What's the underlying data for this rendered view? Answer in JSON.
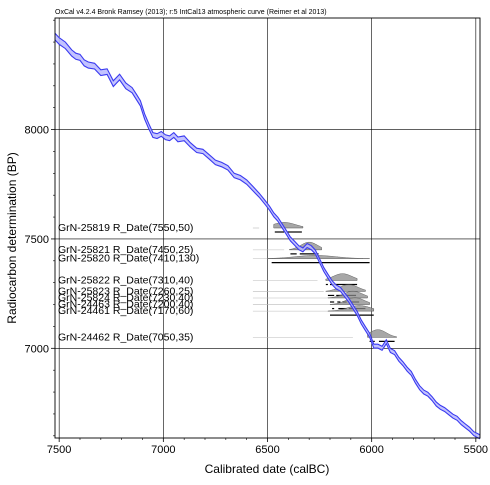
{
  "header": "OxCal v4.2.4 Bronk Ramsey (2013); r:5 IntCal13 atmospheric curve (Reimer et al 2013)",
  "chart_data": {
    "type": "line",
    "title": "",
    "xlabel": "Calibrated date (calBC)",
    "ylabel": "Radiocarbon determination (BP)",
    "xlim": [
      7520,
      5480
    ],
    "ylim": [
      6590,
      8510
    ],
    "x_reversed": true,
    "x_ticks": [
      7500,
      7000,
      6500,
      6000,
      5500
    ],
    "y_ticks": [
      8000,
      7500,
      7000
    ],
    "grid": true,
    "curve_color": "#3a3af0",
    "curve_fill": "#b8b8ff",
    "calibration_curve": {
      "name": "IntCal13",
      "x": [
        7520,
        7500,
        7470,
        7440,
        7420,
        7400,
        7380,
        7360,
        7330,
        7300,
        7270,
        7240,
        7210,
        7180,
        7150,
        7130,
        7110,
        7090,
        7070,
        7050,
        7030,
        7010,
        6990,
        6970,
        6950,
        6930,
        6900,
        6870,
        6840,
        6810,
        6780,
        6750,
        6720,
        6690,
        6660,
        6630,
        6600,
        6570,
        6540,
        6510,
        6490,
        6470,
        6450,
        6430,
        6410,
        6390,
        6370,
        6350,
        6330,
        6310,
        6290,
        6270,
        6250,
        6230,
        6210,
        6190,
        6170,
        6150,
        6130,
        6110,
        6090,
        6070,
        6050,
        6030,
        6010,
        5990,
        5970,
        5950,
        5930,
        5910,
        5890,
        5870,
        5850,
        5830,
        5810,
        5790,
        5770,
        5750,
        5730,
        5710,
        5690,
        5670,
        5650,
        5630,
        5610,
        5590,
        5570,
        5550,
        5530,
        5510,
        5490,
        5480
      ],
      "y": [
        8425,
        8405,
        8385,
        8350,
        8335,
        8330,
        8305,
        8295,
        8290,
        8260,
        8265,
        8210,
        8240,
        8200,
        8180,
        8150,
        8120,
        8060,
        8015,
        7975,
        7970,
        7980,
        7965,
        7960,
        7975,
        7955,
        7960,
        7930,
        7905,
        7900,
        7875,
        7850,
        7840,
        7825,
        7790,
        7780,
        7760,
        7730,
        7700,
        7665,
        7640,
        7610,
        7590,
        7560,
        7530,
        7500,
        7480,
        7460,
        7450,
        7470,
        7460,
        7440,
        7400,
        7360,
        7330,
        7300,
        7280,
        7270,
        7245,
        7220,
        7190,
        7160,
        7120,
        7090,
        7060,
        7010,
        7010,
        7000,
        7030,
        6990,
        6980,
        6950,
        6930,
        6905,
        6885,
        6850,
        6820,
        6800,
        6790,
        6770,
        6745,
        6730,
        6720,
        6705,
        6690,
        6680,
        6660,
        6645,
        6630,
        6610,
        6600,
        6595
      ],
      "sigma": [
        15,
        15,
        15,
        14,
        14,
        14,
        14,
        14,
        13,
        13,
        13,
        13,
        13,
        13,
        12,
        12,
        12,
        12,
        12,
        11,
        11,
        11,
        11,
        11,
        11,
        11,
        11,
        10,
        10,
        10,
        10,
        10,
        10,
        10,
        10,
        10,
        10,
        10,
        9,
        9,
        9,
        9,
        9,
        9,
        9,
        9,
        9,
        9,
        9,
        9,
        9,
        9,
        9,
        9,
        9,
        9,
        9,
        9,
        9,
        9,
        9,
        9,
        9,
        9,
        9,
        9,
        9,
        9,
        9,
        9,
        9,
        9,
        9,
        9,
        9,
        9,
        9,
        9,
        9,
        9,
        9,
        9,
        9,
        9,
        9,
        9,
        9,
        9,
        9,
        9,
        9,
        9
      ]
    },
    "determinations": [
      {
        "label": "GrN-25819 R_Date(7550,50)",
        "bp": 7550,
        "err": 50,
        "cal_peak": 6420,
        "cal_from": 6470,
        "cal_to": 6330,
        "spread": 55,
        "ranges": [
          [
            6465,
            6420
          ],
          [
            6405,
            6335
          ]
        ]
      },
      {
        "label": "GrN-25821 R_Date(7450,25)",
        "bp": 7450,
        "err": 25,
        "cal_peak": 6300,
        "cal_from": 6395,
        "cal_to": 6240,
        "spread": 40,
        "ranges": [
          [
            6390,
            6360
          ],
          [
            6345,
            6255
          ]
        ]
      },
      {
        "label": "GrN-25820 R_Date(7410,130)",
        "bp": 7410,
        "err": 130,
        "cal_peak": 6270,
        "cal_from": 6500,
        "cal_to": 6010,
        "spread": 95,
        "ranges": [
          [
            6480,
            6010
          ]
        ]
      },
      {
        "label": "GrN-25822 R_Date(7310,40)",
        "bp": 7310,
        "err": 40,
        "cal_peak": 6140,
        "cal_from": 6220,
        "cal_to": 6070,
        "spread": 45,
        "ranges": [
          [
            6220,
            6210
          ],
          [
            6200,
            6070
          ]
        ]
      },
      {
        "label": "GrN-25823 R_Date(7260,25)",
        "bp": 7260,
        "err": 25,
        "cal_peak": 6110,
        "cal_from": 6220,
        "cal_to": 6030,
        "spread": 45,
        "ranges": [
          [
            6210,
            6180
          ],
          [
            6170,
            6140
          ],
          [
            6130,
            6075
          ]
        ]
      },
      {
        "label": "GrN-25824 R_Date(7230,40)",
        "bp": 7230,
        "err": 40,
        "cal_peak": 6090,
        "cal_from": 6210,
        "cal_to": 6020,
        "spread": 45,
        "ranges": [
          [
            6200,
            6180
          ],
          [
            6165,
            6150
          ],
          [
            6140,
            6120
          ],
          [
            6110,
            6060
          ]
        ]
      },
      {
        "label": "GrN-24463 R_Date(7200,40)",
        "bp": 7200,
        "err": 40,
        "cal_peak": 6080,
        "cal_from": 6200,
        "cal_to": 6010,
        "spread": 45,
        "ranges": [
          [
            6190,
            6180
          ],
          [
            6160,
            6120
          ],
          [
            6110,
            6030
          ]
        ]
      },
      {
        "label": "GrN-24461 R_Date(7170,60)",
        "bp": 7170,
        "err": 60,
        "cal_peak": 6060,
        "cal_from": 6210,
        "cal_to": 5990,
        "spread": 55,
        "ranges": [
          [
            6200,
            5990
          ]
        ]
      },
      {
        "label": "GrN-24462 R_Date(7050,35)",
        "bp": 7050,
        "err": 35,
        "cal_peak": 5970,
        "cal_from": 6020,
        "cal_to": 5880,
        "spread": 40,
        "ranges": [
          [
            6010,
            5985
          ],
          [
            5965,
            5890
          ]
        ]
      }
    ]
  }
}
